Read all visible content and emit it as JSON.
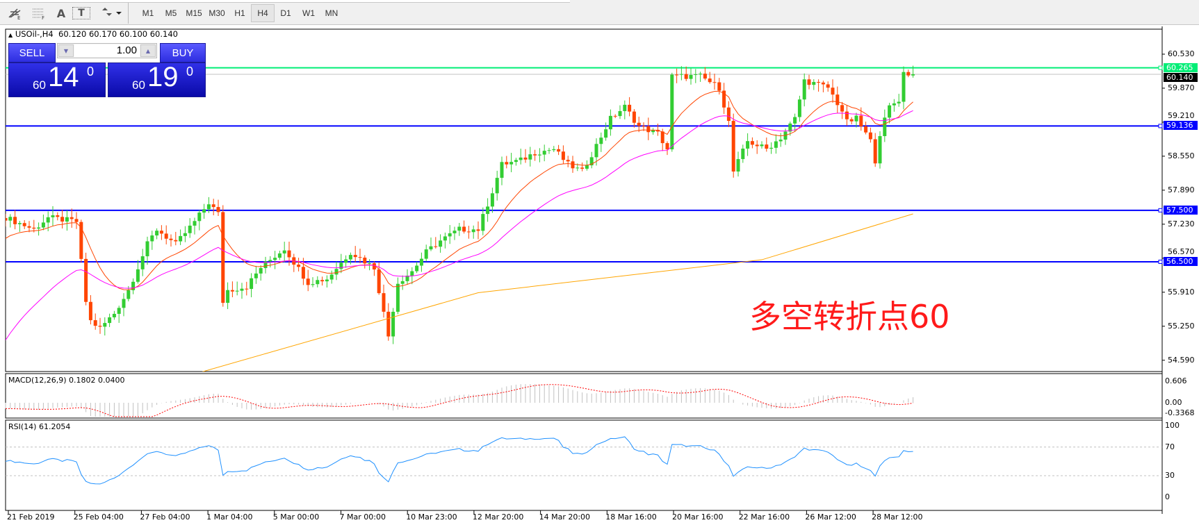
{
  "toolbar": {
    "tools": [
      {
        "icon": "fibonacci-fan-icon"
      },
      {
        "icon": "fibonacci-lines-icon"
      },
      {
        "icon": "text-icon",
        "label": "A"
      },
      {
        "icon": "text-label-icon",
        "label": "T"
      },
      {
        "icon": "arrows-dropdown-icon"
      }
    ],
    "timeframes": [
      "M1",
      "M5",
      "M15",
      "M30",
      "H1",
      "H4",
      "D1",
      "W1",
      "MN"
    ],
    "active_timeframe": "H4"
  },
  "chart": {
    "header": "USOil-,H4  60.120 60.170 60.100 60.140",
    "one_click": {
      "sell_label": "SELL",
      "buy_label": "BUY",
      "lot": "1.00",
      "sell_prefix": "60",
      "sell_big": "14",
      "sell_sup": "0",
      "buy_prefix": "60",
      "buy_big": "19",
      "buy_sup": "0"
    },
    "annotation": "多空转折点60",
    "colors": {
      "bull": "#32cd32",
      "bear": "#ff4500",
      "hline": "#0000ff",
      "green_line": "#00ee76",
      "ma_fast": "#ff4500",
      "ma_mid": "#ff00ff",
      "ma_slow": "#ffa500",
      "rsi": "#1e90ff",
      "macd_signal": "#ff0000",
      "macd_hist": "#c0c0c0"
    }
  },
  "chart_data": {
    "type": "candlestick",
    "symbol": "USOil-",
    "timeframe": "H4",
    "ohlc_last": {
      "open": 60.12,
      "high": 60.17,
      "low": 60.1,
      "close": 60.14
    },
    "close_keypoints_by_bar": [
      [
        0,
        57.36
      ],
      [
        6,
        57.13
      ],
      [
        9,
        57.36
      ],
      [
        15,
        57.28
      ],
      [
        17,
        55.73
      ],
      [
        18,
        55.35
      ],
      [
        20,
        55.21
      ],
      [
        23,
        55.5
      ],
      [
        26,
        55.95
      ],
      [
        30,
        56.84
      ],
      [
        32,
        57.13
      ],
      [
        36,
        56.84
      ],
      [
        40,
        57.28
      ],
      [
        43,
        57.65
      ],
      [
        45,
        57.43
      ],
      [
        46,
        55.73
      ],
      [
        47,
        55.95
      ],
      [
        51,
        56.02
      ],
      [
        54,
        56.39
      ],
      [
        59,
        56.76
      ],
      [
        64,
        56.1
      ],
      [
        68,
        56.17
      ],
      [
        73,
        56.69
      ],
      [
        78,
        56.39
      ],
      [
        81,
        55.06
      ],
      [
        83,
        56.1
      ],
      [
        86,
        56.32
      ],
      [
        89,
        56.69
      ],
      [
        92,
        56.91
      ],
      [
        96,
        57.13
      ],
      [
        100,
        57.13
      ],
      [
        103,
        57.87
      ],
      [
        105,
        58.39
      ],
      [
        109,
        58.47
      ],
      [
        112,
        58.62
      ],
      [
        116,
        58.69
      ],
      [
        119,
        58.39
      ],
      [
        122,
        58.25
      ],
      [
        125,
        58.76
      ],
      [
        128,
        59.28
      ],
      [
        131,
        59.51
      ],
      [
        134,
        59.13
      ],
      [
        138,
        58.99
      ],
      [
        140,
        58.69
      ],
      [
        141,
        60.1
      ],
      [
        147,
        60.1
      ],
      [
        151,
        59.88
      ],
      [
        153,
        59.21
      ],
      [
        154,
        58.25
      ],
      [
        157,
        58.84
      ],
      [
        161,
        58.69
      ],
      [
        164,
        58.91
      ],
      [
        167,
        59.28
      ],
      [
        169,
        60.02
      ],
      [
        174,
        59.88
      ],
      [
        177,
        59.43
      ],
      [
        178,
        59.21
      ],
      [
        180,
        59.28
      ],
      [
        183,
        58.84
      ],
      [
        184,
        58.47
      ],
      [
        185,
        58.99
      ],
      [
        187,
        59.51
      ],
      [
        189,
        59.65
      ],
      [
        190,
        60.17
      ],
      [
        192,
        60.14
      ]
    ],
    "slow_ma_keypoints_by_bar": [
      [
        41,
        54.35
      ],
      [
        100,
        55.9
      ],
      [
        160,
        56.54
      ],
      [
        192,
        57.43
      ]
    ],
    "price_axis_ticks": [
      "60.530",
      "59.870",
      "59.210",
      "58.550",
      "57.890",
      "57.230",
      "56.570",
      "55.910",
      "55.250",
      "54.590"
    ],
    "hlines": [
      {
        "price": "60.265",
        "color": "#00ee76"
      },
      {
        "price": "59.136",
        "color": "#0000ff"
      },
      {
        "price": "57.500",
        "color": "#0000ff"
      },
      {
        "price": "56.500",
        "color": "#0000ff"
      }
    ],
    "current_price": "60.140",
    "time_labels": [
      "21 Feb 2019",
      "25 Feb 04:00",
      "27 Feb 04:00",
      "1 Mar 04:00",
      "5 Mar 00:00",
      "7 Mar 00:00",
      "10 Mar 23:00",
      "12 Mar 20:00",
      "14 Mar 20:00",
      "18 Mar 16:00",
      "20 Mar 16:00",
      "22 Mar 16:00",
      "26 Mar 12:00",
      "28 Mar 12:00"
    ],
    "macd": {
      "label": "MACD(12,26,9) 0.1802 0.0400",
      "ticks": [
        "0.606",
        "0.00",
        "-0.3368"
      ]
    },
    "rsi": {
      "label": "RSI(14) 61.2054",
      "ticks": [
        "100",
        "70",
        "30",
        "0"
      ],
      "levels": [
        70,
        30
      ]
    }
  }
}
